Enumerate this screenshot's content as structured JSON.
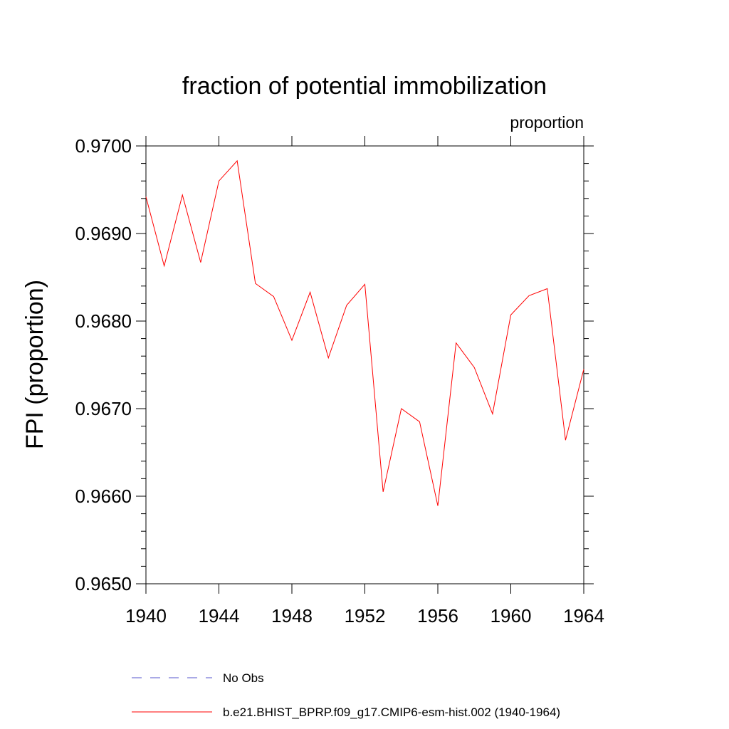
{
  "chart_data": {
    "type": "line",
    "title": "fraction of potential immobilization",
    "subtitle": "proportion",
    "ylabel": "FPI  (proportion)",
    "xlabel": "",
    "xlim": [
      1940,
      1964
    ],
    "ylim": [
      0.965,
      0.97
    ],
    "xticks": [
      1940,
      1944,
      1948,
      1952,
      1956,
      1960,
      1964
    ],
    "xtick_labels": [
      "1940",
      "1944",
      "1948",
      "1952",
      "1956",
      "1960",
      "1964"
    ],
    "yticks": [
      0.965,
      0.966,
      0.967,
      0.968,
      0.969,
      0.97
    ],
    "ytick_labels": [
      "0.9650",
      "0.9660",
      "0.9670",
      "0.9680",
      "0.9690",
      "0.9700"
    ],
    "grid": false,
    "legend_position": "bottom",
    "series": [
      {
        "name": "b.e21.BHIST_BPRP.f09_g17.CMIP6-esm-hist.002 (1940-1964)",
        "color": "#ff0000",
        "style": "solid",
        "x": [
          1940,
          1941,
          1942,
          1943,
          1944,
          1945,
          1946,
          1947,
          1948,
          1949,
          1950,
          1951,
          1952,
          1953,
          1954,
          1955,
          1956,
          1957,
          1958,
          1959,
          1960,
          1961,
          1962,
          1963,
          1964
        ],
        "y": [
          0.96942,
          0.96863,
          0.96944,
          0.96867,
          0.9696,
          0.96983,
          0.96843,
          0.96828,
          0.96778,
          0.96833,
          0.96758,
          0.96818,
          0.96842,
          0.96605,
          0.967,
          0.96685,
          0.96589,
          0.96775,
          0.96747,
          0.96694,
          0.96807,
          0.96829,
          0.96837,
          0.96664,
          0.96745
        ]
      }
    ],
    "legend": [
      {
        "label": "No Obs",
        "color": "#5555cc",
        "style": "dashed"
      },
      {
        "label": "b.e21.BHIST_BPRP.f09_g17.CMIP6-esm-hist.002 (1940-1964)",
        "color": "#ff0000",
        "style": "solid"
      }
    ]
  }
}
